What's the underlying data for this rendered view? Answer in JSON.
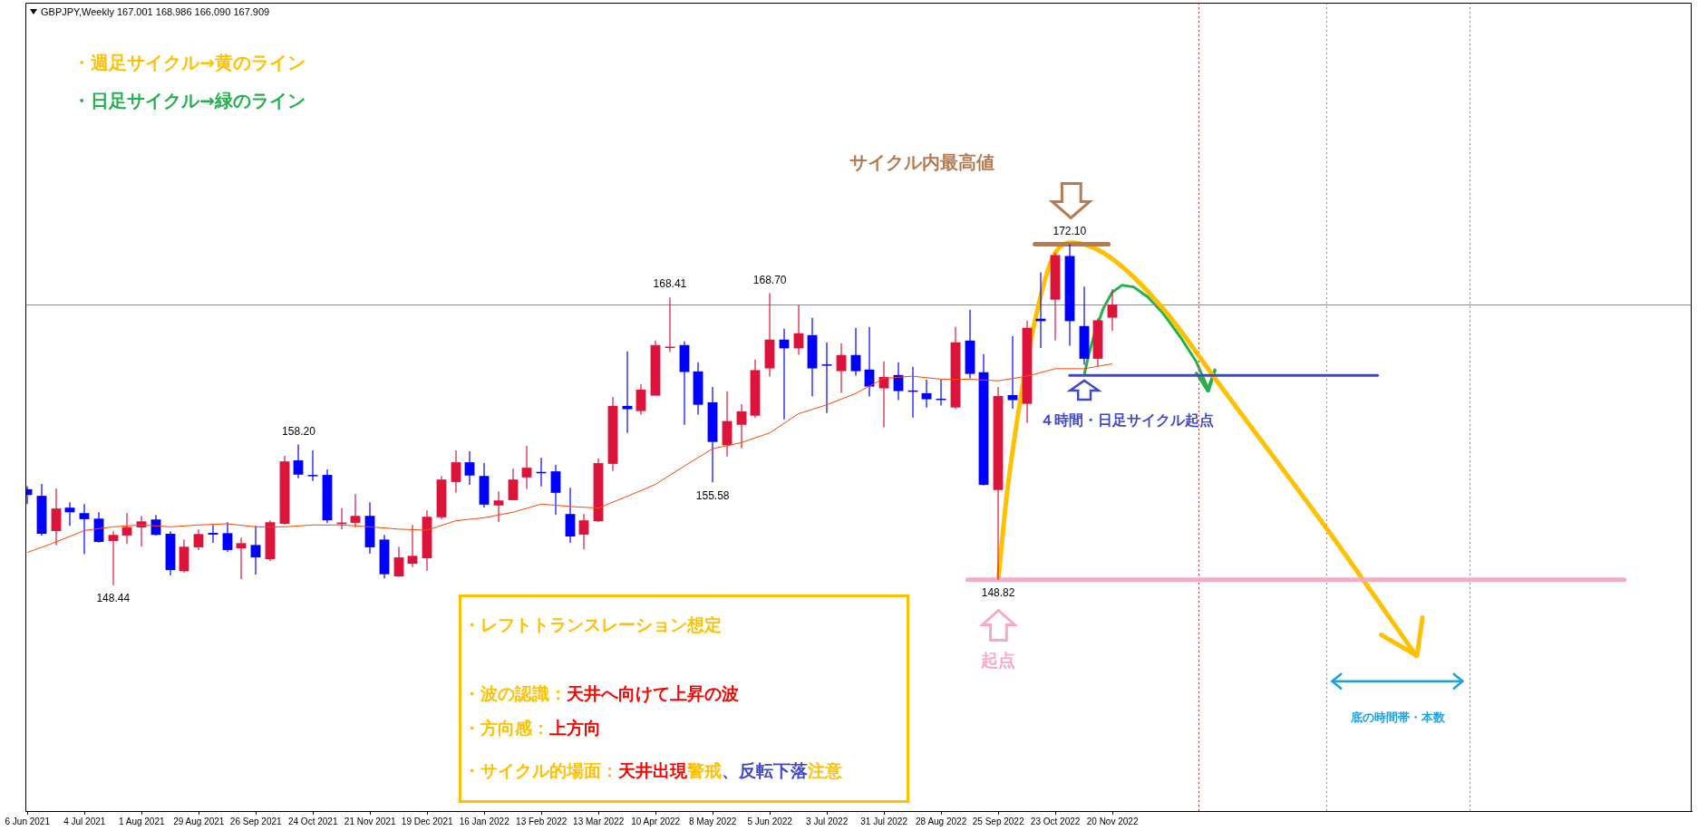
{
  "chart_data": {
    "type": "candlestick",
    "title": "GBPJPY,Weekly  167.001 168.986 166.090 167.909",
    "x": [
      "2021-06-06",
      "2021-06-13",
      "2021-06-20",
      "2021-06-27",
      "2021-07-04",
      "2021-07-11",
      "2021-07-18",
      "2021-07-25",
      "2021-08-01",
      "2021-08-08",
      "2021-08-15",
      "2021-08-22",
      "2021-08-29",
      "2021-09-05",
      "2021-09-12",
      "2021-09-19",
      "2021-09-26",
      "2021-10-03",
      "2021-10-10",
      "2021-10-17",
      "2021-10-24",
      "2021-10-31",
      "2021-11-07",
      "2021-11-14",
      "2021-11-21",
      "2021-11-28",
      "2021-12-05",
      "2021-12-12",
      "2021-12-19",
      "2021-12-26",
      "2022-01-02",
      "2022-01-09",
      "2022-01-16",
      "2022-01-23",
      "2022-01-30",
      "2022-02-06",
      "2022-02-13",
      "2022-02-20",
      "2022-02-27",
      "2022-03-06",
      "2022-03-13",
      "2022-03-20",
      "2022-03-27",
      "2022-04-03",
      "2022-04-10",
      "2022-04-17",
      "2022-04-24",
      "2022-05-01",
      "2022-05-08",
      "2022-05-15",
      "2022-05-22",
      "2022-05-29",
      "2022-06-05",
      "2022-06-12",
      "2022-06-19",
      "2022-06-26",
      "2022-07-03",
      "2022-07-10",
      "2022-07-17",
      "2022-07-24",
      "2022-07-31",
      "2022-08-07",
      "2022-08-14",
      "2022-08-21",
      "2022-08-28",
      "2022-09-04",
      "2022-09-11",
      "2022-09-18",
      "2022-09-25",
      "2022-10-02",
      "2022-10-09",
      "2022-10-16",
      "2022-10-23",
      "2022-10-30",
      "2022-11-06",
      "2022-11-13",
      "2022-11-20"
    ],
    "ohlc": [
      [
        155.1,
        155.31,
        154.07,
        154.7
      ],
      [
        154.64,
        155.46,
        151.89,
        152.01
      ],
      [
        152.2,
        155.16,
        151.23,
        153.76
      ],
      [
        153.82,
        154.2,
        152.56,
        153.5
      ],
      [
        153.44,
        154.07,
        150.6,
        153.02
      ],
      [
        153.06,
        153.5,
        151.4,
        151.44
      ],
      [
        151.51,
        152.18,
        148.44,
        151.93
      ],
      [
        151.89,
        153.44,
        151.3,
        152.47
      ],
      [
        152.45,
        153.25,
        151.13,
        152.87
      ],
      [
        153.0,
        153.31,
        151.89,
        151.93
      ],
      [
        152.01,
        152.18,
        149.11,
        149.49
      ],
      [
        149.41,
        151.61,
        149.32,
        151.11
      ],
      [
        151.07,
        152.31,
        150.88,
        151.99
      ],
      [
        152.07,
        152.62,
        151.38,
        151.95
      ],
      [
        152.05,
        152.81,
        150.75,
        150.88
      ],
      [
        151.0,
        151.74,
        148.86,
        151.36
      ],
      [
        151.23,
        152.56,
        149.18,
        150.37
      ],
      [
        150.25,
        152.94,
        150.12,
        152.81
      ],
      [
        152.7,
        157.41,
        152.64,
        157.03
      ],
      [
        157.1,
        158.2,
        155.86,
        156.11
      ],
      [
        156.09,
        157.79,
        155.67,
        156.0
      ],
      [
        156.09,
        156.47,
        152.75,
        152.94
      ],
      [
        152.68,
        153.78,
        152.33,
        152.79
      ],
      [
        152.77,
        154.76,
        152.45,
        153.25
      ],
      [
        153.25,
        154.2,
        150.62,
        151.07
      ],
      [
        151.61,
        151.93,
        148.92,
        149.2
      ],
      [
        149.05,
        151.11,
        149.03,
        150.37
      ],
      [
        149.93,
        152.62,
        149.7,
        150.48
      ],
      [
        150.31,
        153.63,
        149.43,
        153.19
      ],
      [
        153.15,
        156.02,
        153.02,
        155.77
      ],
      [
        155.6,
        157.79,
        154.85,
        156.97
      ],
      [
        156.97,
        157.73,
        155.41,
        156.05
      ],
      [
        156.02,
        156.91,
        153.84,
        154.03
      ],
      [
        153.97,
        154.95,
        152.83,
        154.32
      ],
      [
        154.34,
        156.53,
        154.34,
        155.77
      ],
      [
        155.92,
        158.1,
        155.1,
        156.59
      ],
      [
        156.3,
        157.28,
        155.29,
        156.26
      ],
      [
        156.34,
        156.78,
        153.33,
        154.85
      ],
      [
        153.38,
        155.2,
        151.38,
        151.82
      ],
      [
        151.95,
        153.38,
        150.94,
        152.94
      ],
      [
        152.89,
        157.22,
        152.83,
        156.91
      ],
      [
        156.86,
        161.51,
        156.36,
        160.88
      ],
      [
        160.88,
        164.66,
        159.01,
        160.65
      ],
      [
        160.52,
        162.39,
        160.27,
        162.01
      ],
      [
        161.59,
        165.41,
        161.59,
        165.1
      ],
      [
        164.93,
        168.41,
        164.62,
        164.99
      ],
      [
        165.1,
        165.35,
        159.57,
        163.23
      ],
      [
        163.27,
        163.9,
        160.27,
        160.96
      ],
      [
        161.13,
        162.2,
        155.58,
        158.38
      ],
      [
        158.15,
        161.89,
        157.37,
        159.83
      ],
      [
        159.57,
        161.0,
        157.94,
        160.5
      ],
      [
        160.2,
        164.09,
        160.06,
        163.36
      ],
      [
        163.48,
        168.7,
        162.91,
        165.48
      ],
      [
        165.48,
        166.23,
        159.95,
        164.87
      ],
      [
        164.87,
        167.87,
        164.43,
        165.92
      ],
      [
        165.79,
        166.99,
        161.53,
        163.48
      ],
      [
        163.76,
        165.29,
        160.39,
        163.67
      ],
      [
        163.29,
        165.23,
        161.78,
        164.41
      ],
      [
        164.41,
        166.3,
        162.98,
        163.29
      ],
      [
        163.4,
        166.36,
        161.53,
        162.22
      ],
      [
        162.1,
        163.97,
        159.39,
        162.89
      ],
      [
        163.02,
        163.9,
        161.28,
        161.91
      ],
      [
        161.95,
        163.59,
        160.08,
        161.89
      ],
      [
        161.76,
        162.7,
        160.77,
        161.34
      ],
      [
        161.38,
        162.7,
        160.9,
        161.32
      ],
      [
        160.77,
        166.36,
        160.65,
        165.29
      ],
      [
        165.41,
        167.56,
        162.79,
        163.1
      ],
      [
        163.21,
        164.47,
        155.35,
        155.41
      ],
      [
        155.04,
        162.2,
        148.82,
        161.57
      ],
      [
        161.63,
        165.73,
        160.69,
        161.28
      ],
      [
        161.02,
        166.8,
        159.7,
        166.3
      ],
      [
        166.93,
        170.14,
        164.89,
        166.76
      ],
      [
        168.25,
        171.51,
        165.41,
        171.34
      ],
      [
        171.28,
        172.1,
        165.06,
        166.76
      ],
      [
        166.42,
        169.15,
        163.73,
        164.15
      ],
      [
        164.15,
        166.95,
        163.63,
        166.82
      ],
      [
        167.001,
        168.986,
        166.09,
        167.909
      ]
    ],
    "colors": [
      "#0000ff",
      "#0000ff",
      "#dc143c",
      "#0000ff",
      "#0000ff",
      "#0000ff",
      "#dc143c",
      "#dc143c",
      "#dc143c",
      "#0000ff",
      "#0000ff",
      "#dc143c",
      "#dc143c",
      "#0000ff",
      "#0000ff",
      "#dc143c",
      "#0000ff",
      "#dc143c",
      "#dc143c",
      "#0000ff",
      "#0000ff",
      "#0000ff",
      "#dc143c",
      "#dc143c",
      "#0000ff",
      "#0000ff",
      "#dc143c",
      "#dc143c",
      "#dc143c",
      "#dc143c",
      "#dc143c",
      "#0000ff",
      "#0000ff",
      "#dc143c",
      "#dc143c",
      "#dc143c",
      "#0000ff",
      "#0000ff",
      "#0000ff",
      "#dc143c",
      "#dc143c",
      "#dc143c",
      "#0000ff",
      "#dc143c",
      "#dc143c",
      "#dc143c",
      "#0000ff",
      "#0000ff",
      "#0000ff",
      "#dc143c",
      "#dc143c",
      "#dc143c",
      "#dc143c",
      "#0000ff",
      "#dc143c",
      "#0000ff",
      "#0000ff",
      "#dc143c",
      "#0000ff",
      "#0000ff",
      "#dc143c",
      "#0000ff",
      "#0000ff",
      "#0000ff",
      "#0000ff",
      "#dc143c",
      "#0000ff",
      "#0000ff",
      "#dc143c",
      "#0000ff",
      "#dc143c",
      "#0000ff",
      "#dc143c",
      "#0000ff",
      "#0000ff",
      "#dc143c",
      "#dc143c"
    ],
    "series": [
      {
        "type": "line",
        "color": "#ff4500",
        "x": [
          "2021-06-06",
          "2021-06-20",
          "2021-07-04",
          "2021-07-18",
          "2021-08-01",
          "2021-08-15",
          "2021-08-29",
          "2021-09-12",
          "2021-09-26",
          "2021-10-10",
          "2021-10-24",
          "2021-11-07",
          "2021-11-21",
          "2021-12-05",
          "2021-12-19",
          "2022-01-02",
          "2022-01-16",
          "2022-01-30",
          "2022-02-13",
          "2022-02-27",
          "2022-03-13",
          "2022-03-27",
          "2022-04-10",
          "2022-04-24",
          "2022-05-08",
          "2022-05-22",
          "2022-06-05",
          "2022-06-19",
          "2022-07-03",
          "2022-07-17",
          "2022-07-31",
          "2022-08-14",
          "2022-08-28",
          "2022-09-11",
          "2022-09-25",
          "2022-10-09",
          "2022-10-23",
          "2022-11-06",
          "2022-11-20"
        ],
        "values": [
          150.71,
          151.44,
          152.24,
          152.49,
          152.62,
          152.49,
          152.62,
          152.7,
          152.49,
          152.49,
          152.62,
          152.62,
          152.49,
          152.33,
          152.26,
          152.91,
          153.12,
          153.5,
          154.07,
          153.9,
          153.8,
          154.6,
          155.44,
          156.7,
          157.91,
          158.33,
          159.01,
          160.33,
          160.96,
          161.74,
          162.79,
          162.94,
          162.73,
          162.73,
          162.62,
          162.94,
          163.46,
          163.46,
          163.8
        ]
      },
      {
        "type": "line",
        "color": "#f9a8c8",
        "x": [
          "2022-09-10",
          "2023-07-29"
        ],
        "values": [
          148.82,
          148.82
        ]
      },
      {
        "type": "line",
        "color": "#3f48cc",
        "x": [
          "2022-10-30",
          "2023-03-30"
        ],
        "values": [
          163.0,
          163.0
        ]
      },
      {
        "type": "line",
        "color": "#b87a50",
        "x": [
          "2022-10-13",
          "2022-11-18"
        ],
        "values": [
          172.1,
          172.1
        ]
      },
      {
        "type": "line",
        "color": "#ffc000",
        "x": [
          "2022-09-25",
          "2022-09-30",
          "2022-10-09",
          "2022-10-19",
          "2022-10-31",
          "2022-11-18",
          "2022-12-15",
          "2023-01-12",
          "2023-03-06",
          "2023-04-18"
        ],
        "values": [
          148.82,
          155.64,
          null,
          170.14,
          172.2,
          171.27,
          167.61,
          162.26,
          152.18,
          143.54
        ]
      }
    ],
    "ref_lines": [
      {
        "axis": "y",
        "value": 167.909,
        "color": "#8c8c8c"
      },
      {
        "axis": "x",
        "value": "2023-01-01",
        "color": "#b03030",
        "line_style": "dotted"
      },
      {
        "axis": "x",
        "value": "2023-03-05",
        "color": "#4f9fd6",
        "line_style": "dotted"
      },
      {
        "axis": "x",
        "value": "2023-05-14",
        "color": "#4f9fd6",
        "line_style": "dotted"
      }
    ],
    "annotations": [
      "・週足サイクル→黄のライン",
      "・日足サイクル→緑のライン",
      "サイクル内最高値",
      "４時間・日足サイクル起点",
      "起点",
      "底の時間帯・本数",
      "・レフトトランスレーション想定",
      "・波の認識：",
      "天井へ向けて上昇の波",
      "・方向感：",
      "上方向",
      "・サイクル的場面：",
      "天井出現",
      "警戒",
      "、反転下落",
      "注意",
      {
        "text": "148.44",
        "x": "2021-07-18",
        "y": 148.44
      },
      {
        "text": "158.20",
        "x": "2021-10-17",
        "y": 158.2
      },
      {
        "text": "168.41",
        "x": "2022-04-17",
        "y": 168.41
      },
      {
        "text": "168.70",
        "x": "2022-06-05",
        "y": 168.7
      },
      {
        "text": "155.58",
        "x": "2022-05-08",
        "y": 155.58
      },
      {
        "text": "172.10",
        "x": "2022-10-30",
        "y": 172.1
      },
      {
        "text": "148.82",
        "x": "2022-09-25",
        "y": 148.82
      }
    ],
    "xlim": [
      "2021-06-05",
      "2023-08-31"
    ],
    "xticks": [
      {
        "value": "2021-06-06",
        "label": "6 Jun 2021"
      },
      {
        "value": "2021-07-04",
        "label": "4 Jul 2021"
      },
      {
        "value": "2021-08-01",
        "label": "1 Aug 2021"
      },
      {
        "value": "2021-08-29",
        "label": "29 Aug 2021"
      },
      {
        "value": "2021-09-26",
        "label": "26 Sep 2021"
      },
      {
        "value": "2021-10-24",
        "label": "24 Oct 2021"
      },
      {
        "value": "2021-11-21",
        "label": "21 Nov 2021"
      },
      {
        "value": "2021-12-19",
        "label": "19 Dec 2021"
      },
      {
        "value": "2022-01-16",
        "label": "16 Jan 2022"
      },
      {
        "value": "2022-02-13",
        "label": "13 Feb 2022"
      },
      {
        "value": "2022-03-13",
        "label": "13 Mar 2022"
      },
      {
        "value": "2022-04-10",
        "label": "10 Apr 2022"
      },
      {
        "value": "2022-05-08",
        "label": "8 May 2022"
      },
      {
        "value": "2022-06-05",
        "label": "5 Jun 2022"
      },
      {
        "value": "2022-07-03",
        "label": "3 Jul 2022"
      },
      {
        "value": "2022-07-31",
        "label": "31 Jul 2022"
      },
      {
        "value": "2022-08-28",
        "label": "28 Aug 2022"
      },
      {
        "value": "2022-09-25",
        "label": "25 Sep 2022"
      },
      {
        "value": "2022-10-23",
        "label": "23 Oct 2022"
      },
      {
        "value": "2022-11-20",
        "label": "20 Nov 2022"
      }
    ],
    "tick_labels": "x",
    "marker": "none"
  }
}
